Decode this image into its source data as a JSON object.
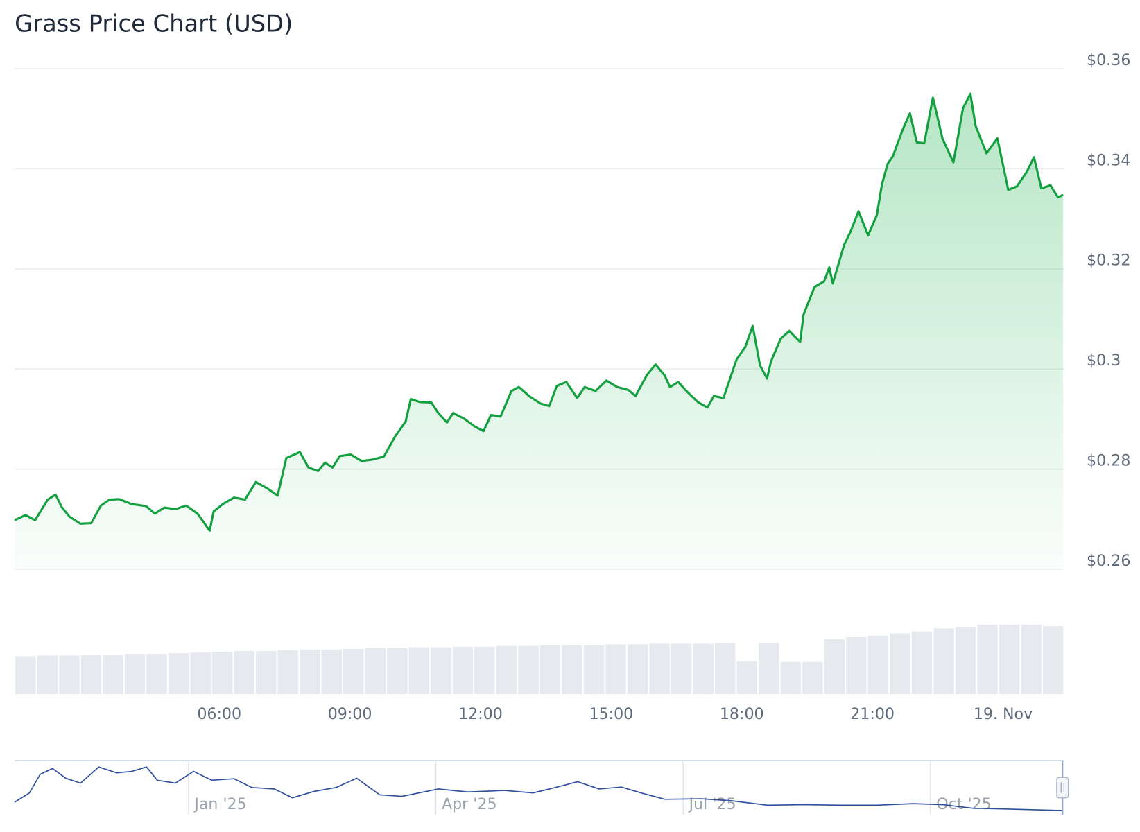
{
  "chart_data": [
    {
      "type": "area",
      "title": "Grass Price Chart (USD)",
      "color": "#13a03f",
      "grid": true,
      "x": [
        1.3,
        1.55,
        1.77,
        2.06,
        2.24,
        2.39,
        2.56,
        2.81,
        3.06,
        3.28,
        3.48,
        3.7,
        3.99,
        4.32,
        4.52,
        4.74,
        4.99,
        5.24,
        5.5,
        5.78,
        5.87,
        6.08,
        6.34,
        6.59,
        6.84,
        7.09,
        7.34,
        7.54,
        7.85,
        8.05,
        8.27,
        8.43,
        8.6,
        8.77,
        9.02,
        9.27,
        9.52,
        9.78,
        10.03,
        10.28,
        10.4,
        10.61,
        10.87,
        11.03,
        11.23,
        11.37,
        11.62,
        11.87,
        12.07,
        12.24,
        12.46,
        12.71,
        12.88,
        13.13,
        13.38,
        13.58,
        13.75,
        13.97,
        14.22,
        14.39,
        14.64,
        14.89,
        15.14,
        15.4,
        15.56,
        15.82,
        16.02,
        16.23,
        16.35,
        16.54,
        16.74,
        16.99,
        17.21,
        17.36,
        17.58,
        17.88,
        18.08,
        18.25,
        18.42,
        18.58,
        18.67,
        18.89,
        19.09,
        19.34,
        19.42,
        19.67,
        19.89,
        20.01,
        20.09,
        20.35,
        20.51,
        20.68,
        20.9,
        21.1,
        21.22,
        21.35,
        21.47,
        21.69,
        21.86,
        22.02,
        22.19,
        22.39,
        22.61,
        22.86,
        23.08,
        23.25,
        23.37,
        23.62,
        23.87,
        24.12,
        24.32,
        24.54,
        24.71,
        24.88,
        25.09,
        25.26,
        25.38
      ],
      "values": [
        0.2698,
        0.2708,
        0.2698,
        0.2739,
        0.2749,
        0.2723,
        0.2705,
        0.2691,
        0.2692,
        0.2727,
        0.2739,
        0.274,
        0.273,
        0.2726,
        0.2711,
        0.2723,
        0.272,
        0.2727,
        0.2711,
        0.2677,
        0.2715,
        0.273,
        0.2743,
        0.2739,
        0.2774,
        0.2762,
        0.2747,
        0.2822,
        0.2834,
        0.2803,
        0.2796,
        0.2813,
        0.2803,
        0.2826,
        0.2829,
        0.2816,
        0.2819,
        0.2825,
        0.2864,
        0.2895,
        0.294,
        0.2934,
        0.2933,
        0.2912,
        0.2893,
        0.2912,
        0.2901,
        0.2885,
        0.2876,
        0.2908,
        0.2905,
        0.2956,
        0.2964,
        0.2945,
        0.2931,
        0.2926,
        0.2966,
        0.2974,
        0.2942,
        0.2964,
        0.2956,
        0.2977,
        0.2964,
        0.2958,
        0.2946,
        0.2988,
        0.3009,
        0.2987,
        0.2964,
        0.2974,
        0.2955,
        0.2934,
        0.2923,
        0.2946,
        0.2942,
        0.3019,
        0.3044,
        0.3086,
        0.3007,
        0.2981,
        0.3015,
        0.306,
        0.3076,
        0.3054,
        0.3109,
        0.3164,
        0.3175,
        0.3203,
        0.3171,
        0.3248,
        0.3277,
        0.3315,
        0.3267,
        0.3307,
        0.3369,
        0.341,
        0.3425,
        0.3477,
        0.3511,
        0.3453,
        0.3451,
        0.3542,
        0.346,
        0.3413,
        0.3521,
        0.355,
        0.3486,
        0.3431,
        0.3461,
        0.3358,
        0.3365,
        0.3393,
        0.3423,
        0.3361,
        0.3367,
        0.3343,
        0.3348
      ],
      "xlim": [
        1.3,
        25.4
      ],
      "xticks": [
        {
          "value": 6,
          "label": "06:00"
        },
        {
          "value": 9,
          "label": "09:00"
        },
        {
          "value": 12,
          "label": "12:00"
        },
        {
          "value": 15,
          "label": "15:00"
        },
        {
          "value": 18,
          "label": "18:00"
        },
        {
          "value": 21,
          "label": "21:00"
        },
        {
          "value": 24,
          "label": "19. Nov"
        }
      ],
      "ylim": [
        0.26,
        0.36
      ],
      "yticks": [
        {
          "value": 0.36,
          "label": "$0.36"
        },
        {
          "value": 0.34,
          "label": "$0.34"
        },
        {
          "value": 0.32,
          "label": "$0.32"
        },
        {
          "value": 0.3,
          "label": "$0.3"
        },
        {
          "value": 0.28,
          "label": "$0.28"
        },
        {
          "value": 0.26,
          "label": "$0.26"
        }
      ]
    },
    {
      "type": "bar",
      "color": "#e6eaef",
      "ylim": [
        0,
        100
      ],
      "values": [
        52,
        53,
        53,
        54,
        54,
        55,
        55,
        56,
        57,
        58,
        59,
        59,
        60,
        61,
        61,
        62,
        63,
        63,
        64,
        64,
        65,
        65,
        66,
        66,
        67,
        67,
        67,
        68,
        68,
        69,
        69,
        69,
        70,
        45,
        70,
        44,
        44,
        75,
        78,
        80,
        83,
        86,
        90,
        92,
        95,
        95,
        95,
        93
      ]
    },
    {
      "type": "line",
      "color": "#2f4f9e",
      "ylim": [
        0,
        100
      ],
      "xlim": [
        -2.11,
        10.62
      ],
      "x": [
        -2.11,
        -1.93,
        -1.8,
        -1.65,
        -1.49,
        -1.31,
        -1.09,
        -0.87,
        -0.69,
        -0.51,
        -0.38,
        -0.16,
        0.06,
        0.28,
        0.55,
        0.77,
        1.04,
        1.26,
        1.52,
        1.79,
        2.04,
        2.32,
        2.59,
        3.03,
        3.39,
        3.83,
        4.18,
        4.45,
        4.72,
        4.98,
        5.25,
        5.51,
        5.78,
        6.22,
        6.58,
        7.02,
        7.46,
        7.91,
        8.35,
        8.79,
        9.15,
        9.5,
        9.95,
        10.61
      ],
      "values": [
        21,
        40,
        78,
        90,
        70,
        60,
        93,
        81,
        84,
        93,
        66,
        60,
        84,
        66,
        69,
        51,
        48,
        30,
        43,
        51,
        70,
        36,
        33,
        48,
        42,
        45,
        40,
        51,
        63,
        48,
        52,
        39,
        27,
        28,
        24,
        15,
        16,
        15,
        15,
        18,
        16,
        9,
        7,
        4
      ],
      "xticks": [
        {
          "value": 0,
          "label": "Jan '25"
        },
        {
          "value": 3,
          "label": "Apr '25"
        },
        {
          "value": 6,
          "label": "Jul '25"
        },
        {
          "value": 9,
          "label": "Oct '25"
        }
      ]
    }
  ]
}
